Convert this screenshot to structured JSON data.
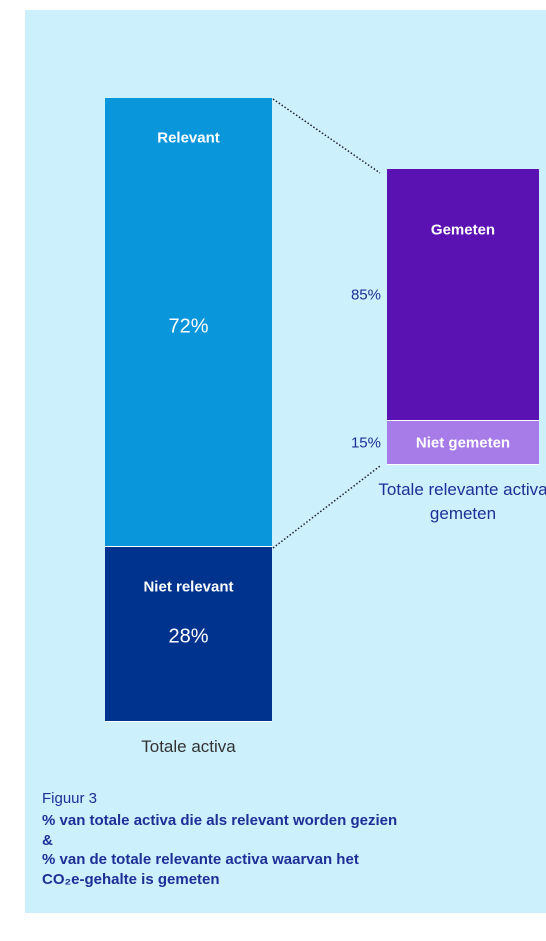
{
  "chart_data": {
    "type": "stacked_bar",
    "categories": [
      "Totale activa",
      "Totale relevante activa gemeten"
    ],
    "ylim": [
      0,
      100
    ],
    "series": [
      {
        "name": "Relevant",
        "color": "#0a96db",
        "values": [
          72,
          null
        ],
        "value_labels": [
          "72%",
          null
        ]
      },
      {
        "name": "Niet relevant",
        "color": "#00338d",
        "values": [
          28,
          null
        ],
        "value_labels": [
          "28%",
          null
        ]
      },
      {
        "name": "Gemeten",
        "color": "#5a12b2",
        "values": [
          null,
          85
        ],
        "value_labels": [
          null,
          "85%"
        ]
      },
      {
        "name": "Niet gemeten",
        "color": "#a77be8",
        "values": [
          null,
          15
        ],
        "value_labels": [
          null,
          "15%"
        ]
      }
    ],
    "figure_label": "Figuur 3",
    "title_lines": [
      "% van totale activa die als relevant worden gezien",
      "&",
      "% van de totale relevante activa waarvan het",
      "CO₂e-gehalte is gemeten"
    ]
  }
}
